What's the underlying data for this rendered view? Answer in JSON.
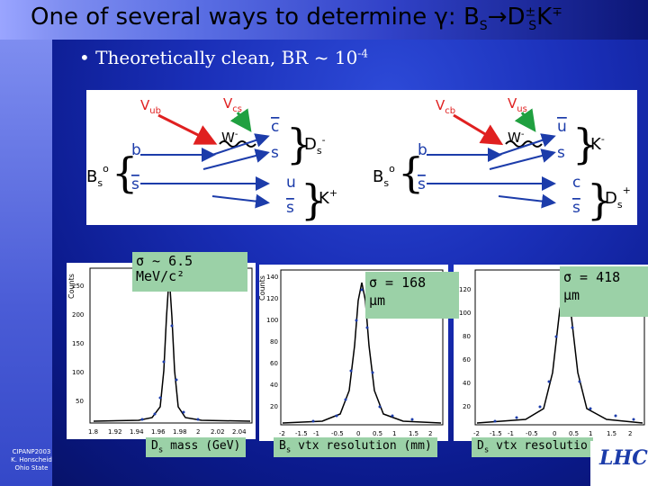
{
  "slide": {
    "title_main": "One of several ways to determine γ: B",
    "title_sub1": "S",
    "title_arrow": "→D",
    "title_sup2": "±",
    "title_sub2": "S",
    "title_tail": "K",
    "title_sup3": "∓",
    "bullet_text": "• Theoretically clean, BR ~ 10",
    "bullet_exp": "-4",
    "footer_line1": "CIPANP2003",
    "footer_line2": "K. Honscheid",
    "footer_line3": "Ohio State"
  },
  "diagrams": {
    "left": {
      "v1": "V",
      "v1_sub": "ub",
      "v2": "V",
      "v2_sub": "cs",
      "w": "W",
      "w_sup": "-",
      "top_quarks": [
        "c",
        "s"
      ],
      "top_meson": "D",
      "top_meson_sub": "s",
      "top_meson_sup": "-",
      "bs": "B",
      "bs_sub": "s",
      "bs_sup": "o",
      "b_quarks": [
        "b",
        "s"
      ],
      "bot_quarks": [
        "u",
        "s"
      ],
      "bot_meson": "K",
      "bot_meson_sup": "+"
    },
    "right": {
      "v1": "V",
      "v1_sub": "cb",
      "v2": "V",
      "v2_sub": "us",
      "w": "W",
      "w_sup": "-",
      "top_quarks": [
        "u",
        "s"
      ],
      "top_meson": "K",
      "top_meson_sup": "-",
      "bs": "B",
      "bs_sub": "s",
      "bs_sup": "o",
      "b_quarks": [
        "b",
        "s"
      ],
      "bot_quarks": [
        "c",
        "s"
      ],
      "bot_meson": "D",
      "bot_meson_sub": "s",
      "bot_meson_sup": "+"
    }
  },
  "plots": [
    {
      "ylabel": "Counts",
      "yticks": [
        "250",
        "200",
        "150",
        "100",
        "50"
      ],
      "xticks": [
        "1.8",
        "1.92",
        "1.94",
        "1.96",
        "1.98",
        "2",
        "2.02",
        "2.04"
      ],
      "sigma_label": "σ ~ 6.5\nMeV/c²",
      "axis_label": "D",
      "axis_sub": "s",
      "axis_tail": " mass (GeV)"
    },
    {
      "ylabel": "Counts",
      "yticks": [
        "140",
        "120",
        "100",
        "80",
        "60",
        "40",
        "20"
      ],
      "xticks": [
        "-2",
        "-1.5",
        "-1",
        "-0.5",
        "0",
        "0.5",
        "1",
        "1.5",
        "2"
      ],
      "sigma_label": "σ = 168\nμm",
      "axis_label": "B",
      "axis_sub": "s",
      "axis_tail": " vtx resolution (mm)"
    },
    {
      "ylabel": "",
      "yticks": [
        "120",
        "100",
        "80",
        "60",
        "40",
        "20"
      ],
      "xticks": [
        "-2",
        "-1.5",
        "-1",
        "-0.5",
        "0",
        "0.5",
        "1",
        "1.5",
        "2"
      ],
      "sigma_label": "σ = 418\nμm",
      "axis_label": "D",
      "axis_sub": "s",
      "axis_tail": " vtx resolutio"
    }
  ],
  "logo": "LHCb",
  "colors": {
    "background": "#1a2fb8",
    "label_green": "#9bd1a7",
    "vertex_red": "#e02020",
    "vertex_green": "#20a040",
    "quark_blue": "#1c3caa"
  }
}
